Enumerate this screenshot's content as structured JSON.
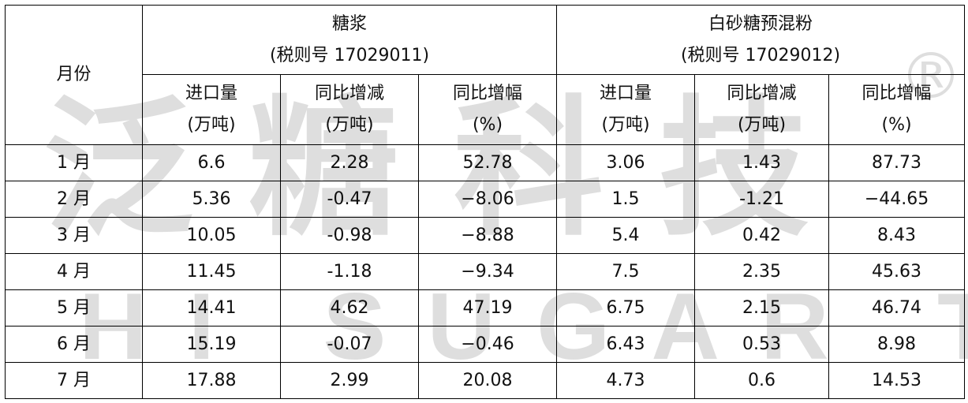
{
  "table": {
    "header": {
      "month": "月份",
      "groups": [
        {
          "name": "糖浆",
          "code": "(税则号 17029011)"
        },
        {
          "name": "白砂糖预混粉",
          "code": "(税则号 17029012)"
        }
      ],
      "columns": [
        {
          "name": "进口量",
          "unit": "(万吨)"
        },
        {
          "name": "同比增减",
          "unit": "(万吨)"
        },
        {
          "name": "同比增幅",
          "unit": "(%)"
        },
        {
          "name": "进口量",
          "unit": "(万吨)"
        },
        {
          "name": "同比增减",
          "unit": "(万吨)"
        },
        {
          "name": "同比增幅",
          "unit": "(%)"
        }
      ]
    },
    "rows": [
      [
        "1 月",
        "6.6",
        "2.28",
        "52.78",
        "3.06",
        "1.43",
        "87.73"
      ],
      [
        "2 月",
        "5.36",
        "-0.47",
        "−8.06",
        "1.5",
        "-1.21",
        "−44.65"
      ],
      [
        "3 月",
        "10.05",
        "-0.98",
        "−8.88",
        "5.4",
        "0.42",
        "8.43"
      ],
      [
        "4 月",
        "11.45",
        "-1.18",
        "−9.34",
        "7.5",
        "2.35",
        "45.63"
      ],
      [
        "5 月",
        "14.41",
        "4.62",
        "47.19",
        "6.75",
        "2.15",
        "46.74"
      ],
      [
        "6 月",
        "15.19",
        "-0.07",
        "−0.46",
        "6.43",
        "0.53",
        "8.98"
      ],
      [
        "7 月",
        "17.88",
        "2.99",
        "20.08",
        "4.73",
        "0.6",
        "14.53"
      ]
    ]
  },
  "watermark": {
    "cn": "泛糖科技",
    "en": "HI SUGAR TECH",
    "mark": "®"
  }
}
